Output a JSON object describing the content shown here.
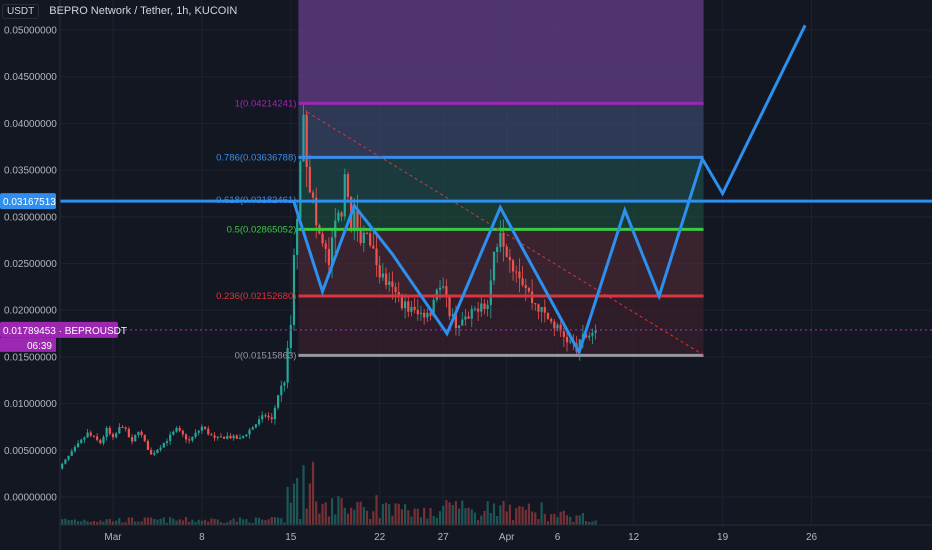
{
  "header": {
    "unit": "USDT",
    "title": "BEPRO Network / Tether, 1h, KUCOIN"
  },
  "colors": {
    "background": "#131722",
    "grid": "#1e222d",
    "up": "#26a69a",
    "down": "#ef5350",
    "pattern": "#2d8ff0",
    "fib_1": "#9c27b0",
    "fib_0786": "#3b8ce8",
    "fib_05": "#3ac940",
    "fib_0236": "#d8353c",
    "fib_0": "#9598a1",
    "current_price": "#9c27b0"
  },
  "chart_data": {
    "type": "candlestick",
    "title": "BEPRO Network / Tether, 1h, KUCOIN",
    "price_unit": "USDT",
    "y_axis_ticks": [
      "0.05000000",
      "0.04500000",
      "0.04000000",
      "0.03500000",
      "0.03000000",
      "0.02500000",
      "0.02000000",
      "0.01500000",
      "0.01000000",
      "0.00500000",
      "0.00000000"
    ],
    "ylim": [
      -0.002,
      0.0515
    ],
    "x_axis_ticks": [
      {
        "label": "Mar",
        "day": 1
      },
      {
        "label": "8",
        "day": 8
      },
      {
        "label": "15",
        "day": 15
      },
      {
        "label": "22",
        "day": 22
      },
      {
        "label": "27",
        "day": 27
      },
      {
        "label": "Apr",
        "day": 32
      },
      {
        "label": "6",
        "day": 36
      },
      {
        "label": "12",
        "day": 42
      },
      {
        "label": "19",
        "day": 49
      },
      {
        "label": "26",
        "day": 56
      }
    ],
    "price_path": [
      [
        -3.5,
        0.0025
      ],
      [
        -3,
        0.0035
      ],
      [
        -2,
        0.0052
      ],
      [
        -1,
        0.0068
      ],
      [
        0,
        0.0058
      ],
      [
        0.5,
        0.0072
      ],
      [
        1,
        0.0062
      ],
      [
        1.7,
        0.0078
      ],
      [
        2.5,
        0.0058
      ],
      [
        3,
        0.0072
      ],
      [
        4,
        0.0045
      ],
      [
        5,
        0.0058
      ],
      [
        6,
        0.0072
      ],
      [
        7,
        0.006
      ],
      [
        8,
        0.0075
      ],
      [
        9,
        0.0062
      ],
      [
        10,
        0.0065
      ],
      [
        11,
        0.0062
      ],
      [
        12,
        0.0075
      ],
      [
        13,
        0.0088
      ],
      [
        13.5,
        0.0082
      ],
      [
        14,
        0.011
      ],
      [
        14.5,
        0.0125
      ],
      [
        15,
        0.0185
      ],
      [
        15.3,
        0.027
      ],
      [
        15.6,
        0.032
      ],
      [
        15.8,
        0.036
      ],
      [
        16,
        0.042
      ],
      [
        16.3,
        0.035
      ],
      [
        16.7,
        0.032
      ],
      [
        17,
        0.029
      ],
      [
        17.5,
        0.027
      ],
      [
        18,
        0.025
      ],
      [
        18.5,
        0.029
      ],
      [
        19,
        0.031
      ],
      [
        19.4,
        0.035
      ],
      [
        19.6,
        0.029
      ],
      [
        20,
        0.03
      ],
      [
        20.5,
        0.027
      ],
      [
        21,
        0.029
      ],
      [
        21.5,
        0.026
      ],
      [
        22,
        0.024
      ],
      [
        23,
        0.022
      ],
      [
        24,
        0.0205
      ],
      [
        25,
        0.0195
      ],
      [
        26,
        0.02
      ],
      [
        26.5,
        0.0225
      ],
      [
        27,
        0.022
      ],
      [
        27.5,
        0.02
      ],
      [
        28,
        0.0185
      ],
      [
        29,
        0.019
      ],
      [
        30,
        0.021
      ],
      [
        30.5,
        0.0205
      ],
      [
        31,
        0.026
      ],
      [
        31.5,
        0.029
      ],
      [
        32,
        0.0265
      ],
      [
        32.5,
        0.025
      ],
      [
        33,
        0.024
      ],
      [
        34,
        0.021
      ],
      [
        35,
        0.0195
      ],
      [
        36,
        0.018
      ],
      [
        37,
        0.0165
      ],
      [
        37.5,
        0.0158
      ],
      [
        38,
        0.017
      ],
      [
        38.5,
        0.0175
      ],
      [
        39,
        0.0179
      ]
    ],
    "volume_max_label": "0.00000000",
    "fibonacci": {
      "levels": [
        {
          "ratio": "1",
          "price": 0.04214241,
          "label": "1(0.04214241)",
          "color": "#9c27b0"
        },
        {
          "ratio": "0.786",
          "price": 0.03636788,
          "label": "0.786(0.03636788)",
          "color": "#3b8ce8"
        },
        {
          "ratio": "0.618",
          "price": 0.03182461,
          "label": "0.618(0.03182461)",
          "color": "#3b8ce8"
        },
        {
          "ratio": "0.5",
          "price": 0.02865052,
          "label": "0.5(0.02865052)",
          "color": "#3ac940"
        },
        {
          "ratio": "0.236",
          "price": 0.0215268,
          "label": "0.236(0.02152680)",
          "color": "#d8353c"
        },
        {
          "ratio": "0",
          "price": 0.01515863,
          "label": "0(0.01515863)",
          "color": "#9598a1"
        }
      ],
      "day_start": 15.6,
      "day_end": 47.5,
      "top_zone_price": 0.0515
    },
    "horizontal_line": {
      "price": 0.03167513,
      "label": "0.03167513"
    },
    "current_price": {
      "price": 0.01789453,
      "label": "0.01789453",
      "symbol": "BEPROUSDT",
      "countdown": "06:39"
    },
    "drawn_pattern": [
      [
        15.2,
        0.0318
      ],
      [
        17.5,
        0.022
      ],
      [
        20.0,
        0.0312
      ],
      [
        23.0,
        0.026
      ],
      [
        27.3,
        0.0175
      ],
      [
        31.5,
        0.031
      ],
      [
        37.7,
        0.0155
      ],
      [
        41.3,
        0.0307
      ],
      [
        44.0,
        0.0215
      ],
      [
        47.4,
        0.0362
      ],
      [
        49.0,
        0.0325
      ],
      [
        55.5,
        0.0505
      ]
    ],
    "diagonal_trend": [
      [
        16.3,
        0.0412
      ],
      [
        47.5,
        0.0152
      ]
    ]
  }
}
